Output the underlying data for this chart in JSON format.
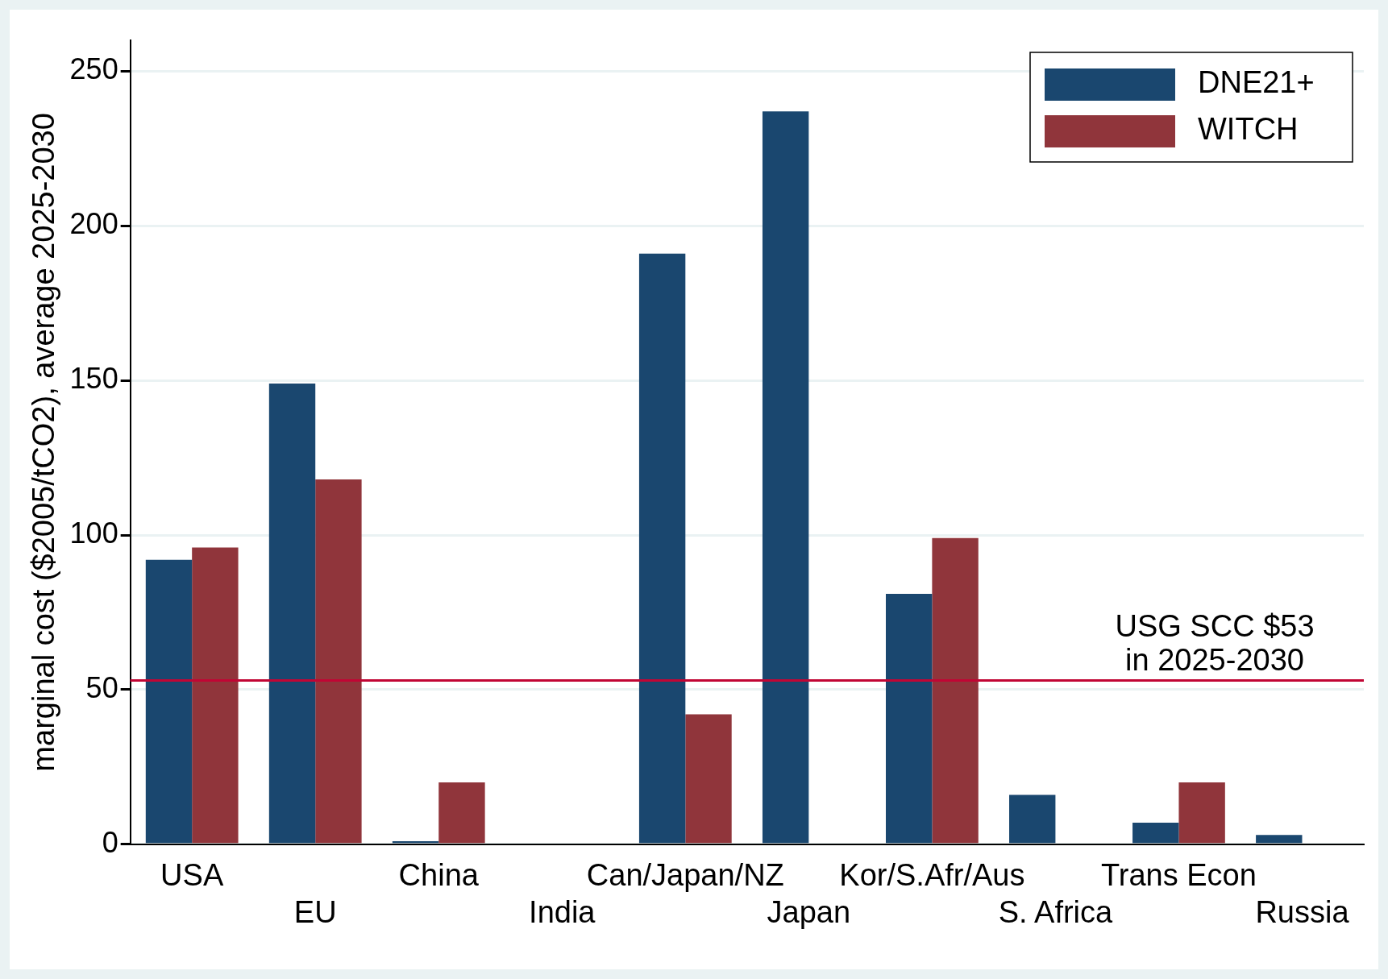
{
  "chart_data": {
    "type": "bar",
    "ylabel": "marginal cost ($2005/tCO2), average 2025-2030",
    "categories": [
      "USA",
      "EU",
      "China",
      "India",
      "Can/Japan/NZ",
      "Japan",
      "Kor/S.Afr/Aus",
      "S. Africa",
      "Trans Econ",
      "Russia"
    ],
    "series": [
      {
        "name": "DNE21+",
        "color": "#1a476f",
        "values": [
          92,
          149,
          1,
          null,
          191,
          237,
          81,
          16,
          7,
          3
        ]
      },
      {
        "name": "WITCH",
        "color": "#90353b",
        "values": [
          96,
          118,
          20,
          null,
          42,
          null,
          99,
          null,
          20,
          null
        ]
      }
    ],
    "ylim": [
      0,
      260
    ],
    "yticks": [
      0,
      50,
      100,
      150,
      200,
      250
    ],
    "grid": "y",
    "legend": "top right",
    "ref_lines": [
      {
        "axis": "y",
        "value": 53,
        "label": "USG SCC $53\nin 2025-2030",
        "color": "#c10534"
      }
    ]
  }
}
